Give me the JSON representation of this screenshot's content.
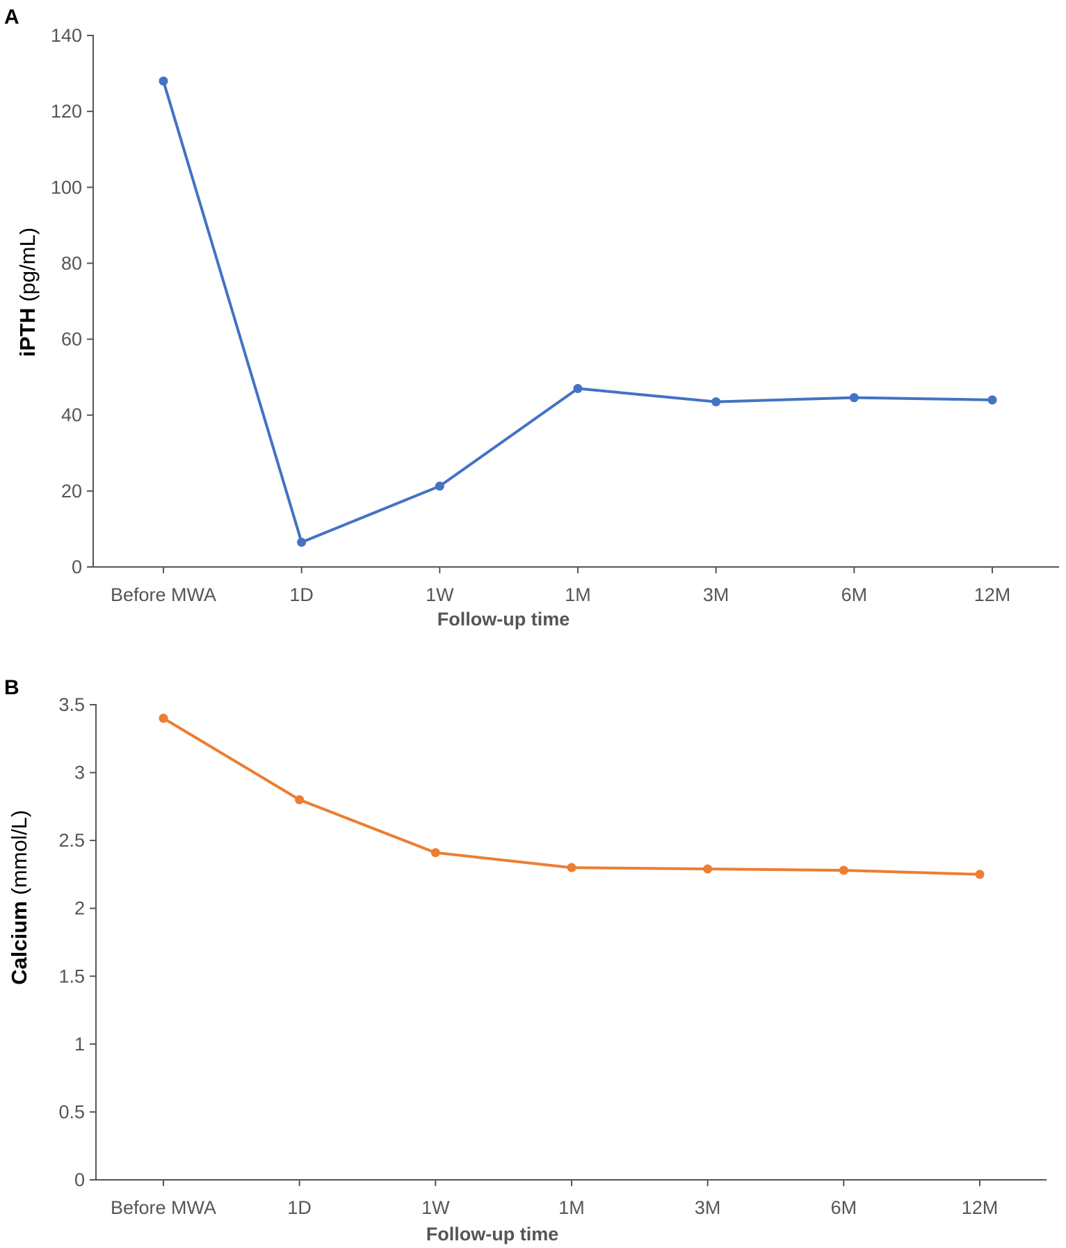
{
  "chart_data": [
    {
      "panel": "A",
      "type": "line",
      "ylabel_bold": "iPTH",
      "ylabel_unit": " (pg/mL)",
      "xlabel": "Follow-up time",
      "categories": [
        "Before MWA",
        "1D",
        "1W",
        "1M",
        "3M",
        "6M",
        "12M"
      ],
      "series": [
        {
          "name": "iPTH",
          "color": "#4472C4",
          "values": [
            128,
            6.5,
            21.3,
            47,
            43.5,
            44.6,
            44
          ]
        }
      ],
      "ylim": [
        0,
        140
      ],
      "yticks": [
        0,
        20,
        40,
        60,
        80,
        100,
        120,
        140
      ],
      "ytick_labels": [
        "0",
        "20",
        "40",
        "60",
        "80",
        "100",
        "120",
        "140"
      ]
    },
    {
      "panel": "B",
      "type": "line",
      "ylabel_bold": "Calcium",
      "ylabel_unit": " (mmol/L)",
      "xlabel": "Follow-up time",
      "categories": [
        "Before MWA",
        "1D",
        "1W",
        "1M",
        "3M",
        "6M",
        "12M"
      ],
      "series": [
        {
          "name": "Calcium",
          "color": "#ED7D31",
          "values": [
            3.4,
            2.8,
            2.41,
            2.3,
            2.29,
            2.28,
            2.25
          ]
        }
      ],
      "ylim": [
        0,
        3.5
      ],
      "yticks": [
        0,
        0.5,
        1,
        1.5,
        2,
        2.5,
        3,
        3.5
      ],
      "ytick_labels": [
        "0",
        "0.5",
        "1",
        "1.5",
        "2",
        "2.5",
        "3",
        "3.5"
      ]
    }
  ]
}
